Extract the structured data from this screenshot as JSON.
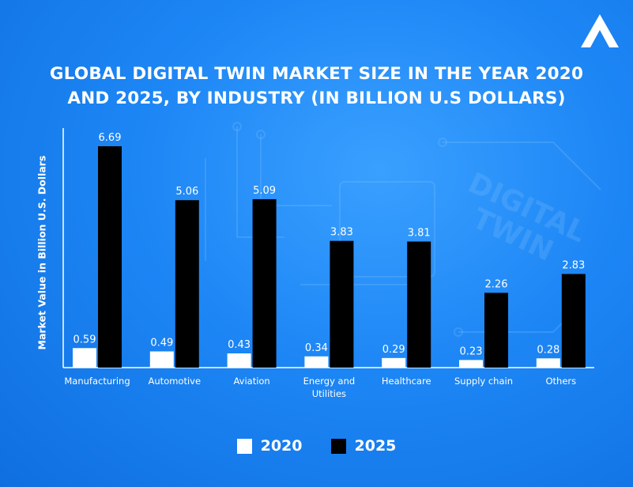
{
  "brand": {
    "logo_icon": "brand-logo-icon"
  },
  "chart_data": {
    "type": "bar",
    "title_lines": [
      "GLOBAL DIGITAL TWIN MARKET SIZE IN THE YEAR 2020",
      "AND 2025, BY INDUSTRY (IN BILLION U.S DOLLARS)"
    ],
    "ylabel": "Market Value in Billion U.S. Dollars",
    "xlabel": "",
    "ylim": [
      0,
      7
    ],
    "grid": false,
    "legend_position": "bottom-center",
    "categories": [
      [
        "Manufacturing"
      ],
      [
        "Automotive"
      ],
      [
        "Aviation"
      ],
      [
        "Energy and",
        "Utilities"
      ],
      [
        "Healthcare"
      ],
      [
        "Supply chain"
      ],
      [
        "Others"
      ]
    ],
    "series": [
      {
        "name": "2020",
        "color": "#ffffff",
        "values": [
          0.59,
          0.49,
          0.43,
          0.34,
          0.29,
          0.23,
          0.28
        ]
      },
      {
        "name": "2025",
        "color": "#000000",
        "values": [
          6.69,
          5.06,
          5.09,
          3.83,
          3.81,
          2.26,
          2.83
        ]
      }
    ]
  }
}
